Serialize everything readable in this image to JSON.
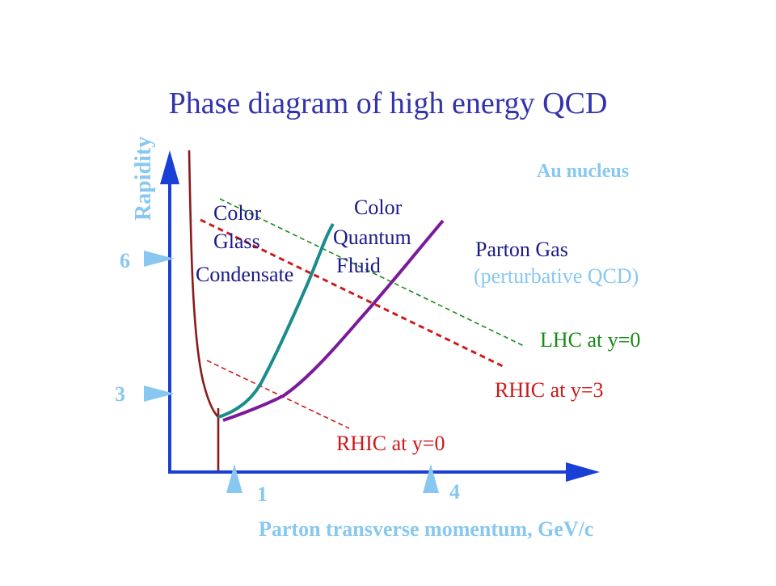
{
  "title": "Phase diagram of high energy QCD",
  "axes": {
    "y_label": "Rapidity",
    "x_label": "Parton transverse momentum, GeV/c",
    "y_ticks": [
      "6",
      "3"
    ],
    "x_ticks": [
      "1",
      "4"
    ]
  },
  "regions": {
    "cgc_line1": "Color",
    "cgc_line2": "Glass",
    "cgc_line3": "Condensate",
    "cqf_line1": "Color",
    "cqf_line2": "Quantum",
    "cqf_line3": "Fluid",
    "gas_line1": "Parton Gas",
    "gas_line2": "(perturbative QCD)",
    "nucleus": "Au nucleus"
  },
  "lines": {
    "lhc": "LHC at y=0",
    "rhic3": "RHIC at y=3",
    "rhic0": "RHIC at y=0"
  },
  "colors": {
    "title": "#3333aa",
    "axis": "#1a3fd6",
    "light_blue": "#88c8f0",
    "dark_red": "#8b1a1a",
    "teal": "#1a8c8c",
    "purple": "#7a1a9a",
    "red": "#cc1a1a",
    "green": "#1a8a1a",
    "navy": "#1a1a8a"
  }
}
